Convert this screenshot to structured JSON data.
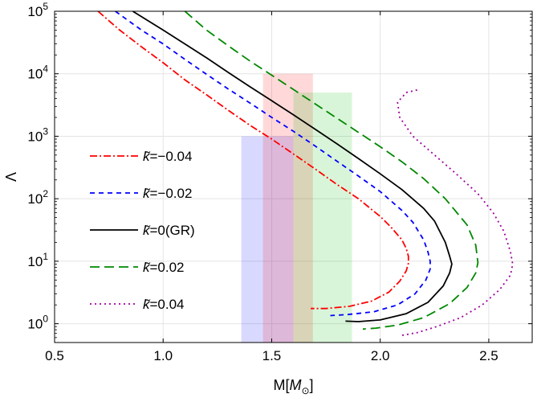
{
  "chart_data": {
    "type": "line",
    "xlabel": "M[M⊙]",
    "xlabel_prefix": "M[",
    "xlabel_unit": "M",
    "xlabel_sub": "⊙",
    "xlabel_suffix": "]",
    "ylabel": "Λ",
    "xlim": [
      0.5,
      2.7
    ],
    "ylim": [
      0.5,
      100000
    ],
    "y_scale": "log",
    "grid": true,
    "legend_position": "left",
    "x_ticks": [
      {
        "value": 0.5,
        "label": "0.5"
      },
      {
        "value": 1.0,
        "label": "1.0"
      },
      {
        "value": 1.5,
        "label": "1.5"
      },
      {
        "value": 2.0,
        "label": "2.0"
      },
      {
        "value": 2.5,
        "label": "2.5"
      }
    ],
    "y_ticks": [
      {
        "value": 1,
        "base": "10",
        "exp": "0"
      },
      {
        "value": 10,
        "base": "10",
        "exp": "1"
      },
      {
        "value": 100,
        "base": "10",
        "exp": "2"
      },
      {
        "value": 1000,
        "base": "10",
        "exp": "3"
      },
      {
        "value": 10000,
        "base": "10",
        "exp": "4"
      },
      {
        "value": 100000,
        "base": "10",
        "exp": "5"
      }
    ],
    "bands": [
      {
        "x": [
          1.36,
          1.6
        ],
        "y": [
          0.5,
          1000
        ],
        "color": "#0000ff",
        "opacity": 0.15
      },
      {
        "x": [
          1.46,
          1.69
        ],
        "y": [
          0.5,
          10000
        ],
        "color": "#ff0000",
        "opacity": 0.15
      },
      {
        "x": [
          1.6,
          1.87
        ],
        "y": [
          0.5,
          5000
        ],
        "color": "#00bb00",
        "opacity": 0.15
      }
    ],
    "series": [
      {
        "name": "k̃=−0.04",
        "name_prefix": "k̃",
        "name_value": "=−0.04",
        "color": "#ff0000",
        "dash": "9,3,2,3",
        "points": [
          [
            0.7,
            100000
          ],
          [
            0.8,
            50000
          ],
          [
            0.9,
            27000
          ],
          [
            1.0,
            15000
          ],
          [
            1.1,
            8000
          ],
          [
            1.2,
            4600
          ],
          [
            1.3,
            2600
          ],
          [
            1.4,
            1500
          ],
          [
            1.5,
            900
          ],
          [
            1.6,
            520
          ],
          [
            1.7,
            300
          ],
          [
            1.8,
            170
          ],
          [
            1.9,
            100
          ],
          [
            1.95,
            72
          ],
          [
            2.0,
            52
          ],
          [
            2.05,
            35
          ],
          [
            2.1,
            22
          ],
          [
            2.12,
            16
          ],
          [
            2.13,
            12
          ],
          [
            2.13,
            9.3
          ],
          [
            2.12,
            7
          ],
          [
            2.09,
            4.8
          ],
          [
            2.04,
            3.2
          ],
          [
            1.96,
            2.3
          ],
          [
            1.86,
            1.9
          ],
          [
            1.75,
            1.75
          ],
          [
            1.68,
            1.75
          ]
        ]
      },
      {
        "name": "k̃=−0.02",
        "name_prefix": "k̃",
        "name_value": "=−0.02",
        "color": "#0000ff",
        "dash": "6,5",
        "points": [
          [
            0.78,
            100000
          ],
          [
            0.9,
            50000
          ],
          [
            1.0,
            30000
          ],
          [
            1.1,
            17000
          ],
          [
            1.2,
            9800
          ],
          [
            1.3,
            5700
          ],
          [
            1.4,
            3400
          ],
          [
            1.5,
            2000
          ],
          [
            1.6,
            1200
          ],
          [
            1.7,
            700
          ],
          [
            1.8,
            400
          ],
          [
            1.9,
            230
          ],
          [
            2.0,
            130
          ],
          [
            2.1,
            65
          ],
          [
            2.15,
            42
          ],
          [
            2.2,
            22
          ],
          [
            2.22,
            14
          ],
          [
            2.23,
            10
          ],
          [
            2.23,
            7.5
          ],
          [
            2.21,
            5
          ],
          [
            2.16,
            3
          ],
          [
            2.08,
            2
          ],
          [
            1.97,
            1.55
          ],
          [
            1.85,
            1.4
          ],
          [
            1.77,
            1.35
          ]
        ]
      },
      {
        "name": "k̃=0(GR)",
        "name_prefix": "k̃",
        "name_value": "=0(GR)",
        "color": "#000000",
        "dash": "",
        "points": [
          [
            0.86,
            100000
          ],
          [
            1.0,
            50000
          ],
          [
            1.1,
            30000
          ],
          [
            1.2,
            18000
          ],
          [
            1.3,
            10500
          ],
          [
            1.4,
            6200
          ],
          [
            1.5,
            3700
          ],
          [
            1.6,
            2200
          ],
          [
            1.7,
            1300
          ],
          [
            1.8,
            760
          ],
          [
            1.9,
            440
          ],
          [
            2.0,
            250
          ],
          [
            2.1,
            140
          ],
          [
            2.2,
            70
          ],
          [
            2.25,
            44
          ],
          [
            2.3,
            20
          ],
          [
            2.32,
            12
          ],
          [
            2.33,
            9
          ],
          [
            2.32,
            6.5
          ],
          [
            2.29,
            4
          ],
          [
            2.22,
            2.2
          ],
          [
            2.12,
            1.45
          ],
          [
            2.0,
            1.15
          ],
          [
            1.9,
            1.08
          ],
          [
            1.84,
            1.1
          ]
        ]
      },
      {
        "name": "k̃=0.02",
        "name_prefix": "k̃",
        "name_value": "=0.02",
        "color": "#008800",
        "dash": "12,6",
        "points": [
          [
            1.1,
            100000
          ],
          [
            1.2,
            50000
          ],
          [
            1.3,
            28000
          ],
          [
            1.4,
            16000
          ],
          [
            1.5,
            9500
          ],
          [
            1.6,
            5600
          ],
          [
            1.7,
            3300
          ],
          [
            1.8,
            1950
          ],
          [
            1.9,
            1150
          ],
          [
            2.0,
            680
          ],
          [
            2.1,
            390
          ],
          [
            2.2,
            210
          ],
          [
            2.3,
            100
          ],
          [
            2.4,
            38
          ],
          [
            2.44,
            18
          ],
          [
            2.45,
            9.5
          ],
          [
            2.44,
            6.5
          ],
          [
            2.4,
            3.8
          ],
          [
            2.32,
            2.1
          ],
          [
            2.2,
            1.25
          ],
          [
            2.08,
            0.95
          ],
          [
            1.98,
            0.85
          ],
          [
            1.92,
            0.82
          ]
        ]
      },
      {
        "name": "k̃=0.04",
        "name_prefix": "k̃",
        "name_value": "=0.04",
        "color": "#a000a0",
        "dash": "2,4",
        "points": [
          [
            2.17,
            5500
          ],
          [
            2.12,
            5000
          ],
          [
            2.08,
            3500
          ],
          [
            2.09,
            2000
          ],
          [
            2.15,
            1000
          ],
          [
            2.25,
            500
          ],
          [
            2.35,
            250
          ],
          [
            2.45,
            120
          ],
          [
            2.52,
            60
          ],
          [
            2.57,
            30
          ],
          [
            2.6,
            14
          ],
          [
            2.61,
            9
          ],
          [
            2.6,
            6
          ],
          [
            2.55,
            3.5
          ],
          [
            2.47,
            2
          ],
          [
            2.37,
            1.25
          ],
          [
            2.26,
            0.9
          ],
          [
            2.17,
            0.72
          ],
          [
            2.1,
            0.65
          ]
        ]
      }
    ]
  }
}
